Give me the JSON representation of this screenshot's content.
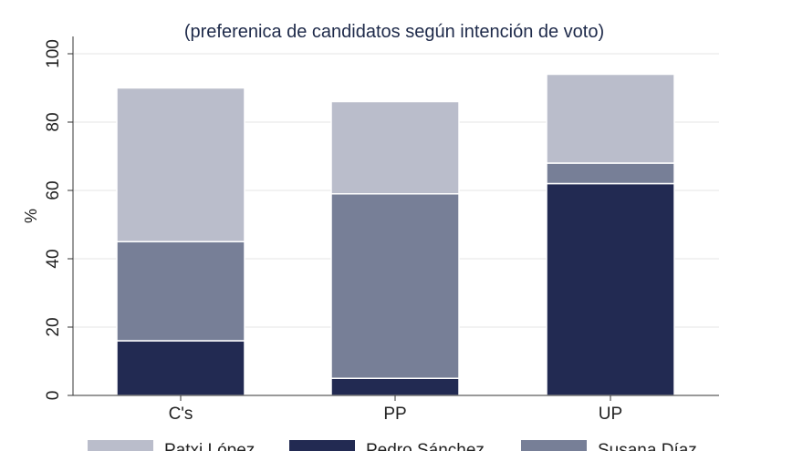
{
  "chart_data": {
    "type": "bar",
    "stacked": true,
    "title": "",
    "subtitle": "(preferenica de candidatos según intención de voto)",
    "xlabel": "",
    "ylabel": "%",
    "categories": [
      "C's",
      "PP",
      "UP"
    ],
    "ylim": [
      0,
      100
    ],
    "yticks": [
      "0",
      "20",
      "40",
      "60",
      "80",
      "100"
    ],
    "grid": true,
    "legend_position": "bottom",
    "series": [
      {
        "name": "Pedro Sánchez",
        "color": "#222a52",
        "values": [
          16,
          5,
          62
        ]
      },
      {
        "name": "Susana Díaz",
        "color": "#777f97",
        "values": [
          29,
          54,
          6
        ]
      },
      {
        "name": "Patxi López",
        "color": "#babdcb",
        "values": [
          45,
          27,
          26
        ]
      }
    ],
    "legend_order": [
      "Patxi López",
      "Pedro Sánchez",
      "Susana Díaz"
    ]
  }
}
